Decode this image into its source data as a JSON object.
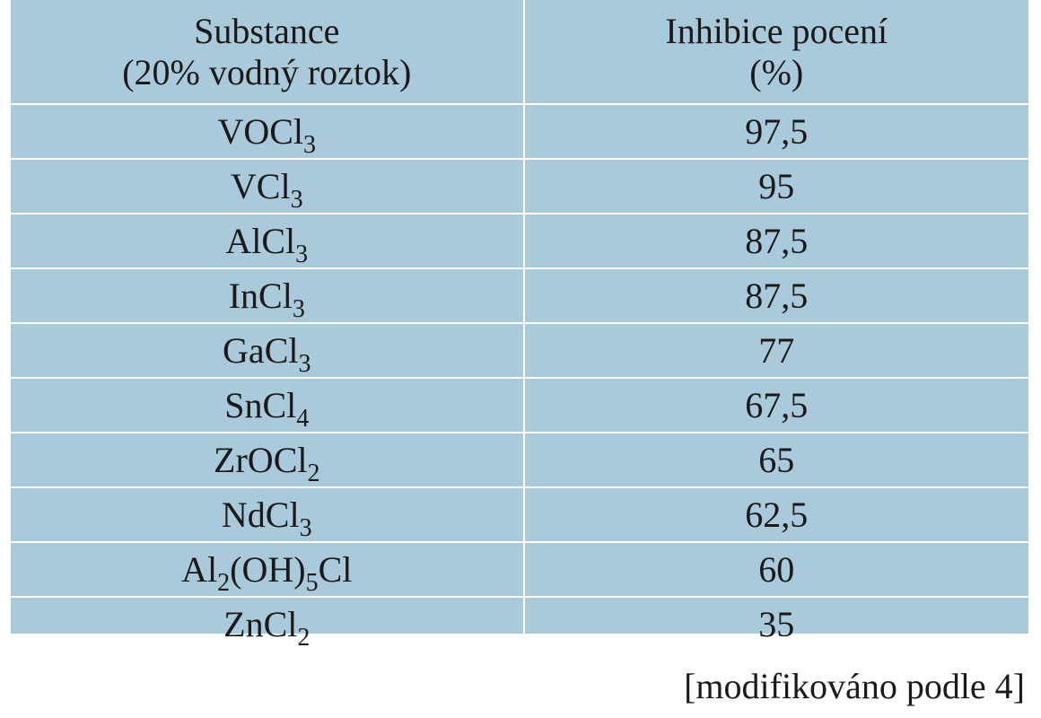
{
  "table": {
    "header": {
      "substance_line1": "Substance",
      "substance_line2": "(20% vodný roztok)",
      "inhibition_line1": "Inhibice pocení",
      "inhibition_line2": "(%)"
    },
    "rows": [
      {
        "formula": [
          [
            "VOCl",
            ""
          ],
          [
            "3",
            "sub"
          ]
        ],
        "value": "97,5"
      },
      {
        "formula": [
          [
            "VCl",
            ""
          ],
          [
            "3",
            "sub"
          ]
        ],
        "value": "95"
      },
      {
        "formula": [
          [
            "AlCl",
            ""
          ],
          [
            "3",
            "sub"
          ]
        ],
        "value": "87,5"
      },
      {
        "formula": [
          [
            "InCl",
            ""
          ],
          [
            "3",
            "sub"
          ]
        ],
        "value": "87,5"
      },
      {
        "formula": [
          [
            "GaCl",
            ""
          ],
          [
            "3",
            "sub"
          ]
        ],
        "value": "77"
      },
      {
        "formula": [
          [
            "SnCl",
            ""
          ],
          [
            "4",
            "sub"
          ]
        ],
        "value": "67,5"
      },
      {
        "formula": [
          [
            "ZrOCl",
            ""
          ],
          [
            "2",
            "sub"
          ]
        ],
        "value": "65"
      },
      {
        "formula": [
          [
            "NdCl",
            ""
          ],
          [
            "3",
            "sub"
          ]
        ],
        "value": "62,5"
      },
      {
        "formula": [
          [
            "Al",
            ""
          ],
          [
            "2",
            "sub"
          ],
          [
            "(OH)",
            ""
          ],
          [
            "5",
            "sub"
          ],
          [
            "Cl",
            ""
          ]
        ],
        "value": "60"
      },
      {
        "formula": [
          [
            "ZnCl",
            ""
          ],
          [
            "2",
            "sub"
          ]
        ],
        "value": "35"
      }
    ]
  },
  "source_note": "[modifikováno podle 4]",
  "colors": {
    "table_background": "#a9cadb",
    "grid_lines": "#ffffff",
    "text": "#1a1a1a"
  }
}
